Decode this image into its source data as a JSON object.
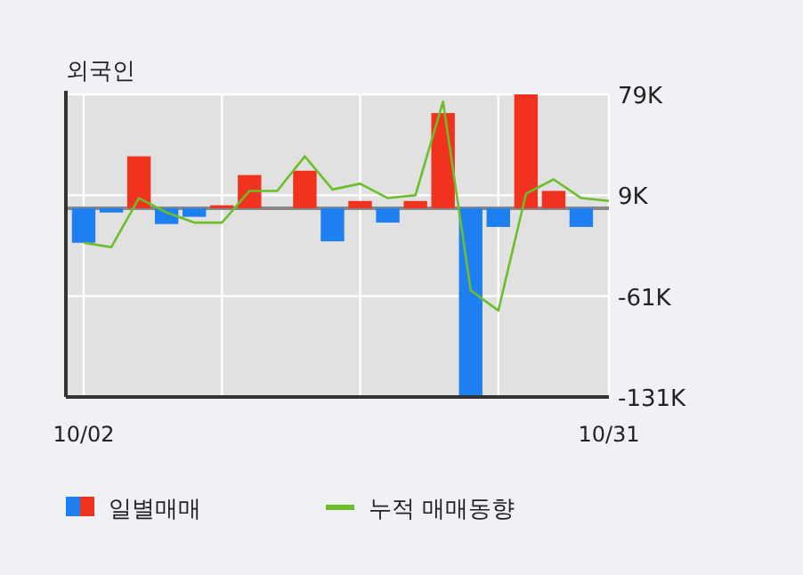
{
  "chart_data": {
    "type": "bar",
    "title": "외국인",
    "categories": [
      "10/02",
      null,
      null,
      null,
      null,
      null,
      null,
      null,
      null,
      null,
      null,
      null,
      null,
      null,
      null,
      null,
      null,
      null,
      null,
      "10/31"
    ],
    "series": [
      {
        "name": "일별매매",
        "colors": [
          "#1e7ff0",
          "#1e7ff0",
          "#f0321e",
          "#1e7ff0",
          "#1e7ff0",
          "#f0321e",
          "#f0321e",
          "#f0321e",
          "#f0321e",
          "#1e7ff0",
          "#f0321e",
          "#1e7ff0",
          "#f0321e",
          "#f0321e",
          "#1e7ff0",
          "#1e7ff0",
          "#f0321e",
          "#f0321e",
          "#1e7ff0",
          "#f0321e"
        ],
        "values": [
          -24,
          -3,
          36,
          -11,
          -6,
          2,
          23,
          0,
          26,
          -23,
          5,
          -10,
          5,
          66,
          -130,
          -13,
          79,
          12,
          -13,
          0
        ]
      },
      {
        "name": "누적 매매동향",
        "type": "line",
        "color": "#6cbf2a",
        "values": [
          -24,
          -27,
          7,
          -3,
          -10,
          -10,
          12,
          12,
          36,
          13,
          17,
          7,
          9,
          74,
          -57,
          -71,
          10,
          20,
          7,
          5
        ]
      }
    ],
    "ylim": [
      -131,
      79
    ],
    "yticks": [
      {
        "value": 79,
        "label": "79K"
      },
      {
        "value": 9,
        "label": "9K"
      },
      {
        "value": -61,
        "label": "-61K"
      },
      {
        "value": -131,
        "label": "-131K"
      }
    ],
    "ref_lines": [
      {
        "axis": "y",
        "value": 0,
        "color": "#888888"
      }
    ],
    "grid": true,
    "legend": "bottom"
  }
}
